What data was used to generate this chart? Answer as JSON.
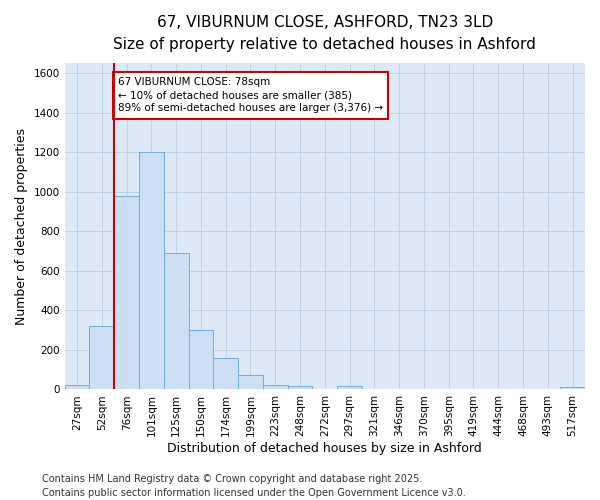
{
  "title_line1": "67, VIBURNUM CLOSE, ASHFORD, TN23 3LD",
  "title_line2": "Size of property relative to detached houses in Ashford",
  "xlabel": "Distribution of detached houses by size in Ashford",
  "ylabel": "Number of detached properties",
  "categories": [
    "27sqm",
    "52sqm",
    "76sqm",
    "101sqm",
    "125sqm",
    "150sqm",
    "174sqm",
    "199sqm",
    "223sqm",
    "248sqm",
    "272sqm",
    "297sqm",
    "321sqm",
    "346sqm",
    "370sqm",
    "395sqm",
    "419sqm",
    "444sqm",
    "468sqm",
    "493sqm",
    "517sqm"
  ],
  "values": [
    25,
    320,
    980,
    1200,
    690,
    300,
    160,
    75,
    25,
    15,
    2,
    15,
    0,
    0,
    0,
    0,
    0,
    0,
    0,
    0,
    12
  ],
  "bar_color": "#ccdff5",
  "bar_edge_color": "#6aaed6",
  "red_line_index": 2,
  "red_line_color": "#cc0000",
  "annotation_text": "67 VIBURNUM CLOSE: 78sqm\n← 10% of detached houses are smaller (385)\n89% of semi-detached houses are larger (3,376) →",
  "annotation_box_color": "#ffffff",
  "annotation_box_edge": "#cc0000",
  "ylim": [
    0,
    1650
  ],
  "yticks": [
    0,
    200,
    400,
    600,
    800,
    1000,
    1200,
    1400,
    1600
  ],
  "footer_line1": "Contains HM Land Registry data © Crown copyright and database right 2025.",
  "footer_line2": "Contains public sector information licensed under the Open Government Licence v3.0.",
  "plot_bg_color": "#dde9f7",
  "fig_bg_color": "#ffffff",
  "title_fontsize": 11,
  "subtitle_fontsize": 9,
  "axis_label_fontsize": 9,
  "tick_fontsize": 7.5,
  "footer_fontsize": 7,
  "annotation_fontsize": 7.5
}
